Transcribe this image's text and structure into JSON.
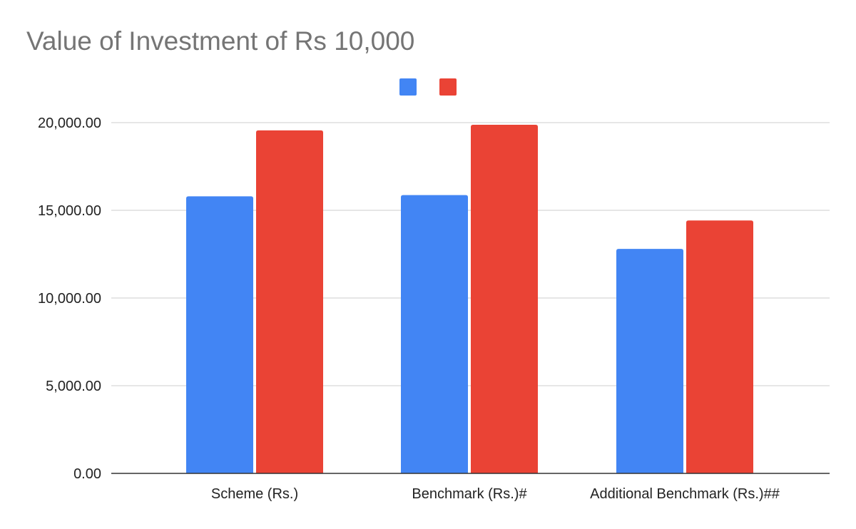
{
  "chart_data": {
    "type": "bar",
    "title": "Value of Investment of Rs 10,000",
    "categories": [
      "Scheme (Rs.)",
      "Benchmark (Rs.)#",
      "Additional Benchmark (Rs.)##"
    ],
    "series": [
      {
        "values": [
          15800,
          15870,
          12800
        ],
        "color": "#4285f4"
      },
      {
        "values": [
          19560,
          19880,
          14420
        ],
        "color": "#ea4335"
      }
    ],
    "ylim": [
      0,
      20000
    ],
    "yticks": [
      0,
      5000,
      10000,
      15000,
      20000
    ],
    "ytick_labels": [
      "0.00",
      "5,000.00",
      "10,000.00",
      "15,000.00",
      "20,000.00"
    ],
    "grid": true,
    "legend_position": "top-center",
    "xlabel": "",
    "ylabel": ""
  }
}
